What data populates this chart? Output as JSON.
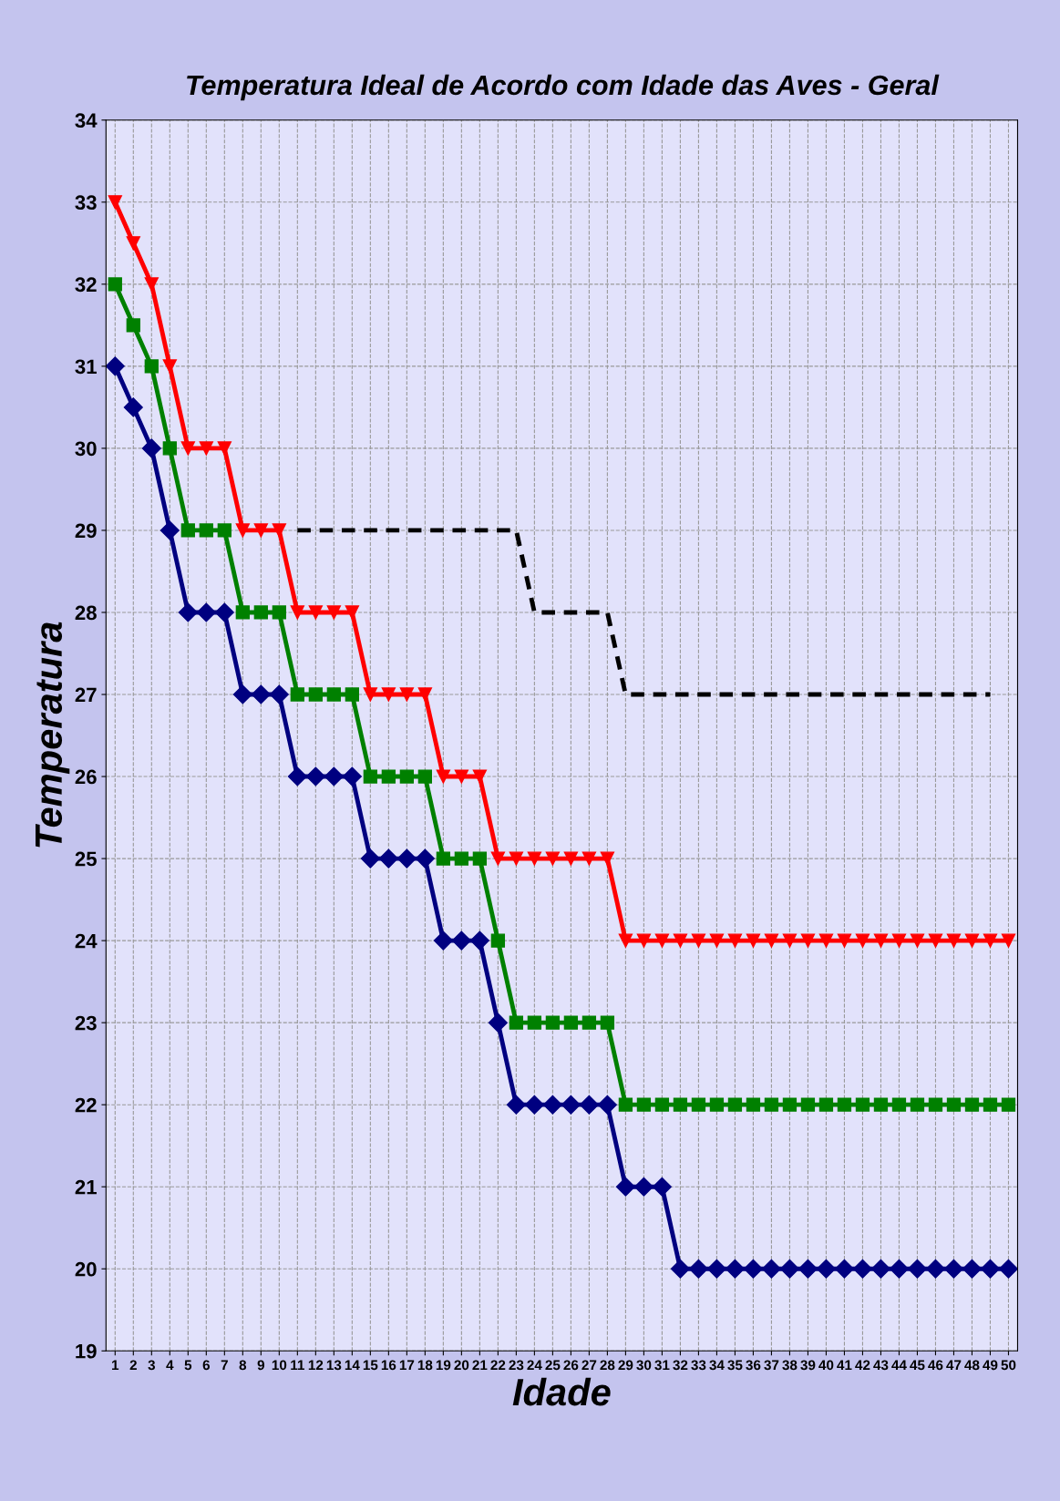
{
  "chart_data": {
    "type": "line",
    "title": "Temperatura Ideal de Acordo com Idade das Aves - Geral",
    "xlabel": "Idade",
    "ylabel": "Temperatura",
    "categories": [
      "1",
      "2",
      "3",
      "4",
      "5",
      "6",
      "7",
      "8",
      "9",
      "10",
      "11",
      "12",
      "13",
      "14",
      "15",
      "16",
      "17",
      "18",
      "19",
      "20",
      "21",
      "22",
      "23",
      "24",
      "25",
      "26",
      "27",
      "28",
      "29",
      "30",
      "31",
      "32",
      "33",
      "34",
      "35",
      "36",
      "37",
      "38",
      "39",
      "40",
      "41",
      "42",
      "43",
      "44",
      "45",
      "46",
      "47",
      "48",
      "49",
      "50"
    ],
    "ylim": [
      19,
      34
    ],
    "yticks": [
      19,
      20,
      21,
      22,
      23,
      24,
      25,
      26,
      27,
      28,
      29,
      30,
      31,
      32,
      33,
      34
    ],
    "grid": true,
    "series": [
      {
        "color": "#ff0000",
        "marker": "triangle",
        "line_style": "solid",
        "values": [
          33,
          32.5,
          32,
          31,
          30,
          30,
          30,
          29,
          29,
          29,
          28,
          28,
          28,
          28,
          27,
          27,
          27,
          27,
          26,
          26,
          26,
          25,
          25,
          25,
          25,
          25,
          25,
          25,
          24,
          24,
          24,
          24,
          24,
          24,
          24,
          24,
          24,
          24,
          24,
          24,
          24,
          24,
          24,
          24,
          24,
          24,
          24,
          24,
          24,
          24
        ]
      },
      {
        "color": "#008000",
        "marker": "square",
        "line_style": "solid",
        "values": [
          32,
          31.5,
          31,
          30,
          29,
          29,
          29,
          28,
          28,
          28,
          27,
          27,
          27,
          27,
          26,
          26,
          26,
          26,
          25,
          25,
          25,
          24,
          23,
          23,
          23,
          23,
          23,
          23,
          22,
          22,
          22,
          22,
          22,
          22,
          22,
          22,
          22,
          22,
          22,
          22,
          22,
          22,
          22,
          22,
          22,
          22,
          22,
          22,
          22,
          22
        ]
      },
      {
        "color": "#000080",
        "marker": "diamond",
        "line_style": "solid",
        "values": [
          31,
          30.5,
          30,
          29,
          28,
          28,
          28,
          27,
          27,
          27,
          26,
          26,
          26,
          26,
          25,
          25,
          25,
          25,
          24,
          24,
          24,
          23,
          22,
          22,
          22,
          22,
          22,
          22,
          21,
          21,
          21,
          20,
          20,
          20,
          20,
          20,
          20,
          20,
          20,
          20,
          20,
          20,
          20,
          20,
          20,
          20,
          20,
          20,
          20,
          20
        ]
      },
      {
        "color": "#000000",
        "marker": "none",
        "line_style": "dashed",
        "values": [
          null,
          null,
          null,
          null,
          null,
          null,
          null,
          null,
          null,
          null,
          29,
          29,
          29,
          29,
          29,
          29,
          29,
          29,
          29,
          29,
          29,
          29,
          29,
          28,
          28,
          28,
          28,
          28,
          27,
          27,
          27,
          27,
          27,
          27,
          27,
          27,
          27,
          27,
          27,
          27,
          27,
          27,
          27,
          27,
          27,
          27,
          27,
          27,
          27,
          null
        ]
      }
    ]
  }
}
